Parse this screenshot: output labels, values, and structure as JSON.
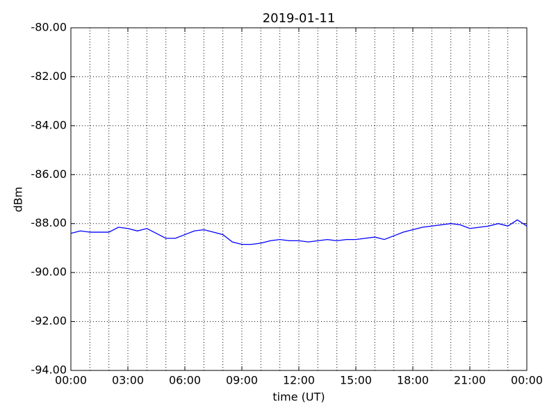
{
  "chart_data": {
    "type": "line",
    "title": "2019-01-11",
    "xlabel": "time (UT)",
    "ylabel": "dBm",
    "x": [
      0,
      0.5,
      1,
      1.5,
      2,
      2.5,
      3,
      3.5,
      4,
      4.5,
      5,
      5.5,
      6,
      6.5,
      7,
      7.5,
      8,
      8.5,
      9,
      9.5,
      10,
      10.5,
      11,
      11.5,
      12,
      12.5,
      13,
      13.5,
      14,
      14.5,
      15,
      15.5,
      16,
      16.5,
      17,
      17.5,
      18,
      18.5,
      19,
      19.5,
      20,
      20.5,
      21,
      21.5,
      22,
      22.5,
      23,
      23.5,
      24
    ],
    "series": [
      {
        "name": "dBm",
        "color": "#0000ff",
        "values": [
          -88.4,
          -88.3,
          -88.35,
          -88.35,
          -88.35,
          -88.15,
          -88.2,
          -88.3,
          -88.2,
          -88.4,
          -88.6,
          -88.6,
          -88.45,
          -88.3,
          -88.25,
          -88.35,
          -88.45,
          -88.75,
          -88.85,
          -88.85,
          -88.8,
          -88.7,
          -88.65,
          -88.7,
          -88.7,
          -88.75,
          -88.7,
          -88.65,
          -88.7,
          -88.65,
          -88.65,
          -88.6,
          -88.55,
          -88.65,
          -88.5,
          -88.35,
          -88.25,
          -88.15,
          -88.1,
          -88.05,
          -88.0,
          -88.05,
          -88.2,
          -88.15,
          -88.1,
          -88.0,
          -88.1,
          -87.85,
          -88.1
        ]
      }
    ],
    "xlim": [
      0,
      24
    ],
    "xticks": [
      {
        "value": 0,
        "label": "00:00"
      },
      {
        "value": 3,
        "label": "03:00"
      },
      {
        "value": 6,
        "label": "06:00"
      },
      {
        "value": 9,
        "label": "09:00"
      },
      {
        "value": 12,
        "label": "12:00"
      },
      {
        "value": 15,
        "label": "15:00"
      },
      {
        "value": 18,
        "label": "18:00"
      },
      {
        "value": 21,
        "label": "21:00"
      },
      {
        "value": 24,
        "label": "00:00"
      }
    ],
    "xminorticks": [
      1,
      2,
      4,
      5,
      7,
      8,
      10,
      11,
      13,
      14,
      16,
      17,
      19,
      20,
      22,
      23
    ],
    "ylim": [
      -94,
      -80
    ],
    "yticks": [
      {
        "value": -94,
        "label": "-94.00"
      },
      {
        "value": -92,
        "label": "-92.00"
      },
      {
        "value": -90,
        "label": "-90.00"
      },
      {
        "value": -88,
        "label": "-88.00"
      },
      {
        "value": -86,
        "label": "-86.00"
      },
      {
        "value": -84,
        "label": "-84.00"
      },
      {
        "value": -82,
        "label": "-82.00"
      },
      {
        "value": -80,
        "label": "-80.00"
      }
    ],
    "grid": true
  }
}
